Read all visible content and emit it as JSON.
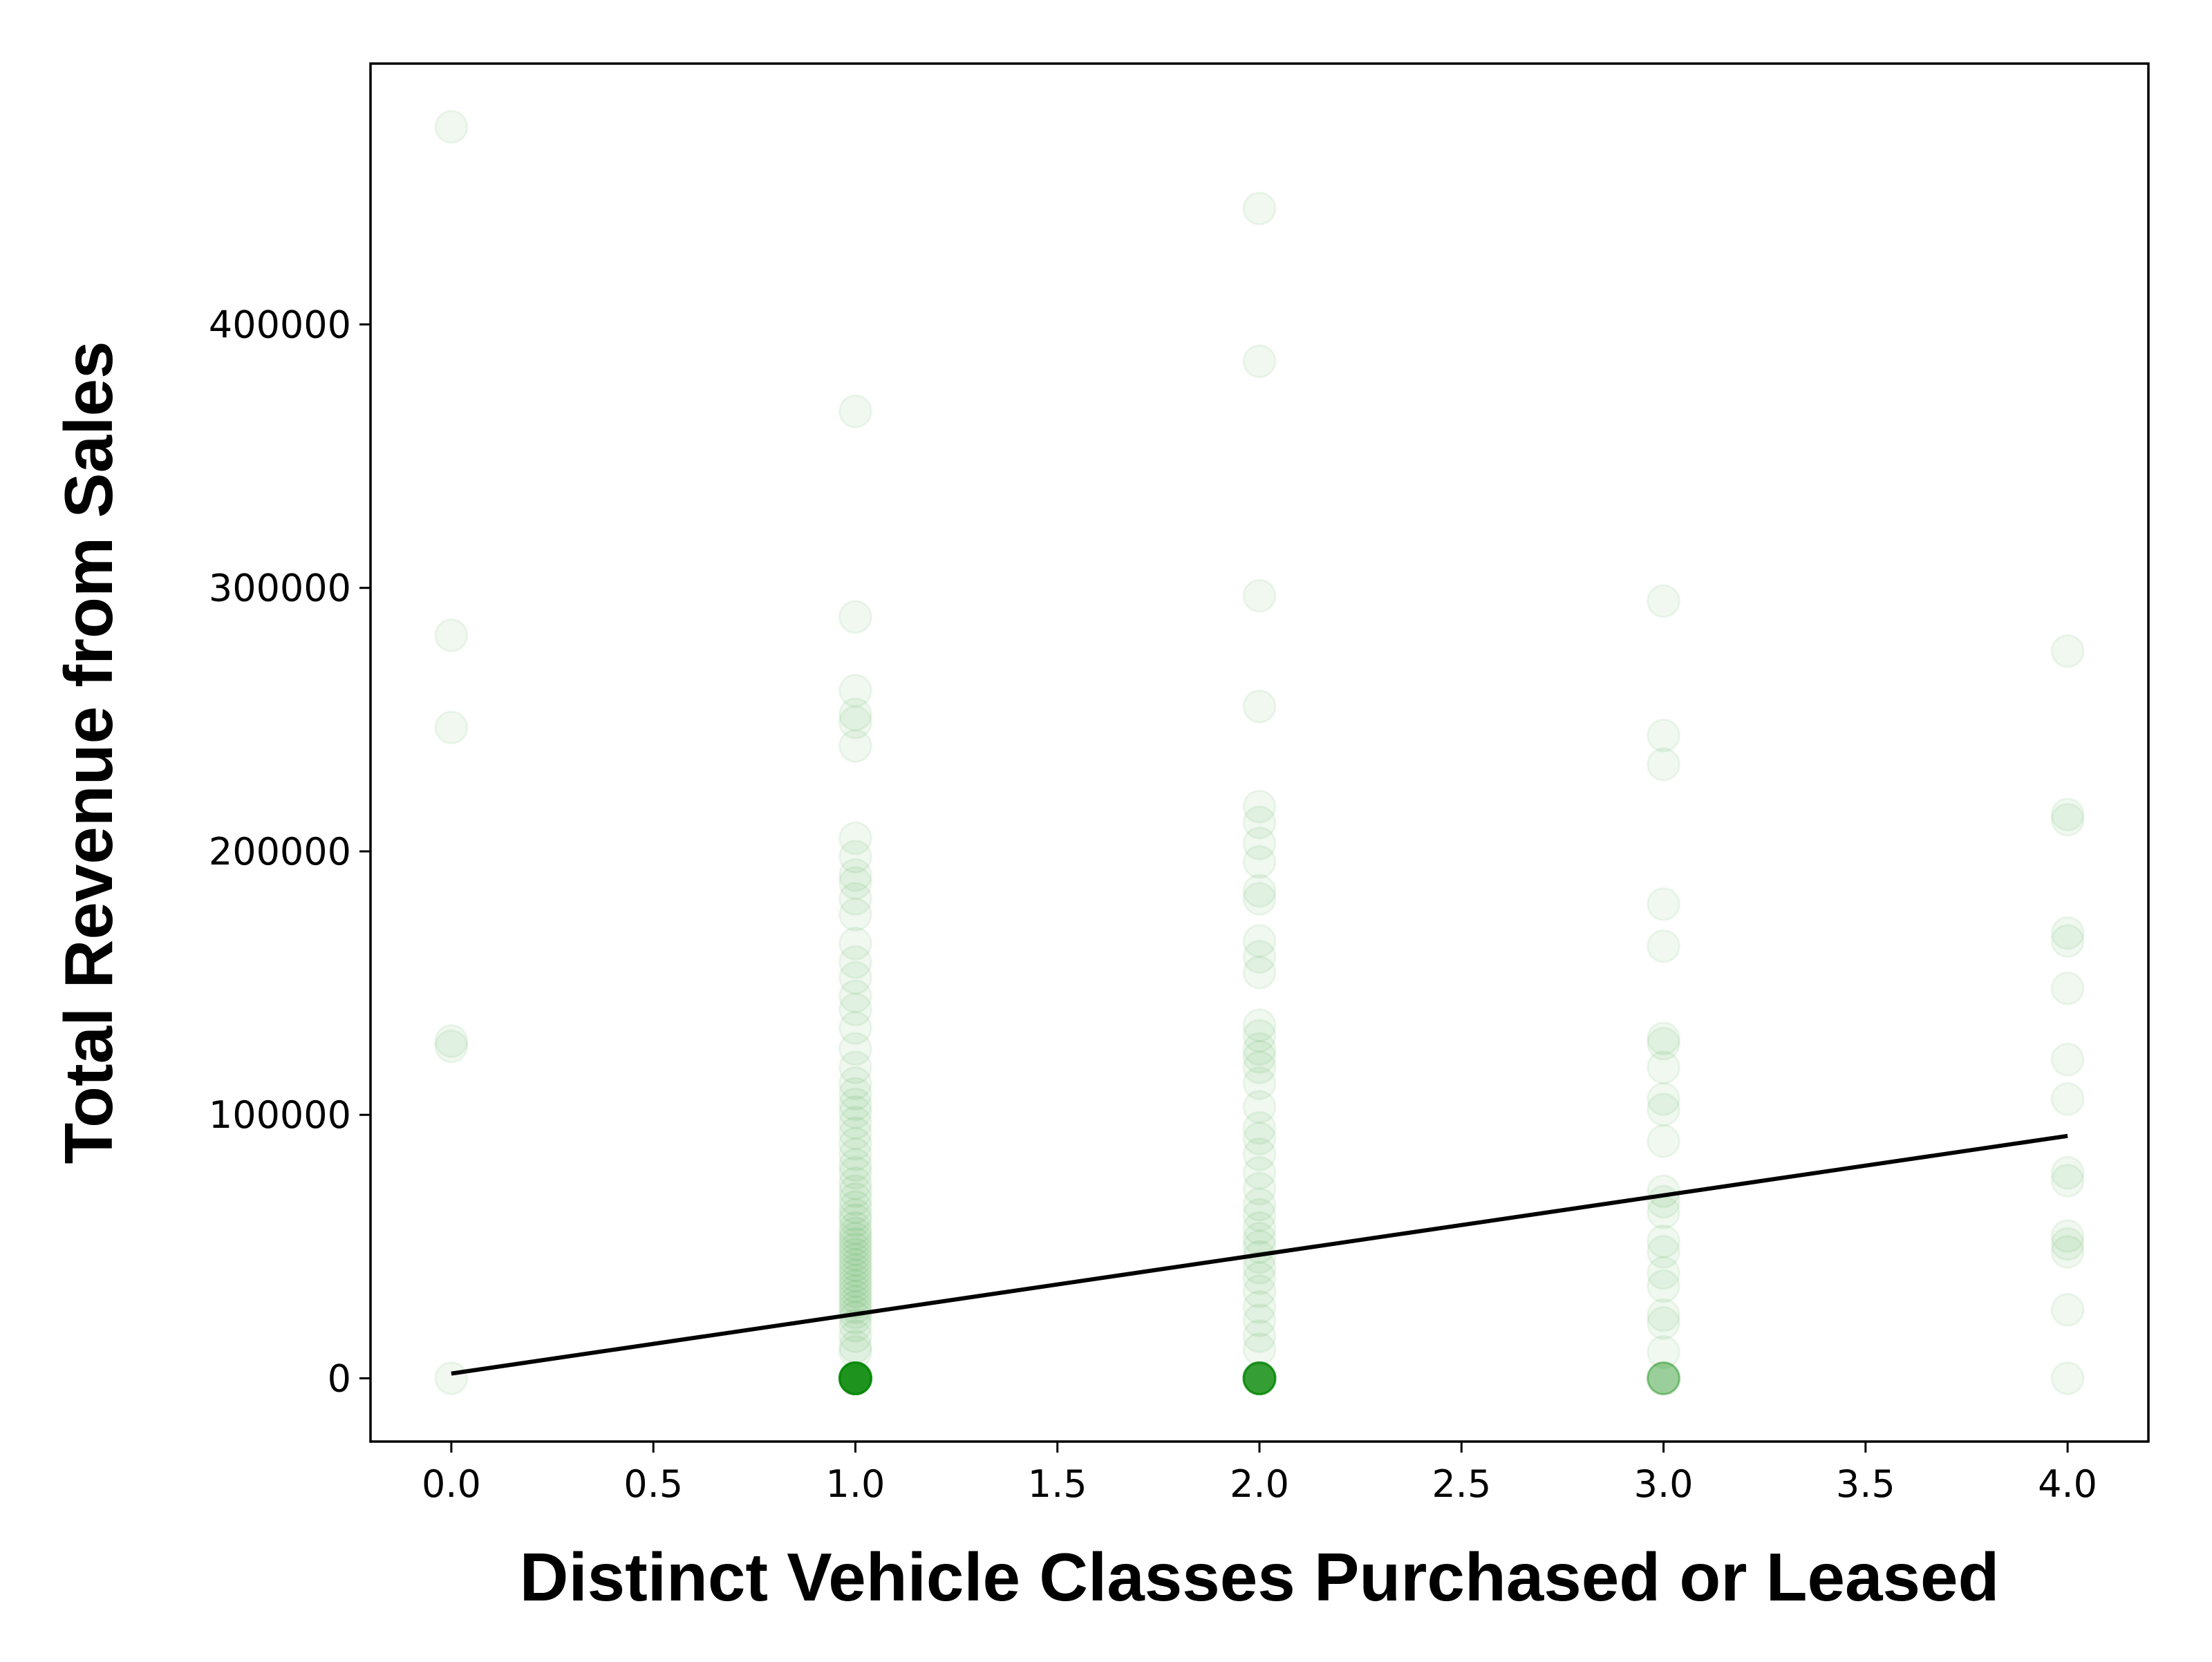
{
  "chart_data": {
    "type": "scatter",
    "title": "",
    "xlabel": "Distinct Vehicle Classes Purchased or Leased",
    "ylabel": "Total Revenue from Sales",
    "xlim": [
      -0.2,
      4.2
    ],
    "ylim": [
      -24000,
      499000
    ],
    "xticks": [
      0.0,
      0.5,
      1.0,
      1.5,
      2.0,
      2.5,
      3.0,
      3.5,
      4.0
    ],
    "xtick_labels": [
      "0.0",
      "0.5",
      "1.0",
      "1.5",
      "2.0",
      "2.5",
      "3.0",
      "3.5",
      "4.0"
    ],
    "yticks": [
      0,
      100000,
      200000,
      300000,
      400000
    ],
    "ytick_labels": [
      "0",
      "100000",
      "200000",
      "300000",
      "400000"
    ],
    "grid": false,
    "legend": "none",
    "colors": {
      "points": "#008000",
      "fit_line": "#000000",
      "axes": "#000000"
    },
    "point_alpha": 0.06,
    "series": [
      {
        "values": [
          {
            "x": 0,
            "y": 475000
          },
          {
            "x": 0,
            "y": 282000
          },
          {
            "x": 0,
            "y": 247000
          },
          {
            "x": 0,
            "y": 128000
          },
          {
            "x": 0,
            "y": 126000
          },
          {
            "x": 0,
            "y": 0
          },
          {
            "x": 1,
            "y": 367000
          },
          {
            "x": 1,
            "y": 289000
          },
          {
            "x": 1,
            "y": 261000
          },
          {
            "x": 1,
            "y": 252000
          },
          {
            "x": 1,
            "y": 249000
          },
          {
            "x": 1,
            "y": 240000
          },
          {
            "x": 1,
            "y": 205000
          },
          {
            "x": 1,
            "y": 198000
          },
          {
            "x": 1,
            "y": 191000
          },
          {
            "x": 1,
            "y": 188000
          },
          {
            "x": 1,
            "y": 182000
          },
          {
            "x": 1,
            "y": 176000
          },
          {
            "x": 1,
            "y": 165000
          },
          {
            "x": 1,
            "y": 158000
          },
          {
            "x": 1,
            "y": 152000
          },
          {
            "x": 1,
            "y": 145000
          },
          {
            "x": 1,
            "y": 140000
          },
          {
            "x": 1,
            "y": 133000
          },
          {
            "x": 1,
            "y": 125000
          },
          {
            "x": 1,
            "y": 118000
          },
          {
            "x": 1,
            "y": 112000
          },
          {
            "x": 1,
            "y": 108000
          },
          {
            "x": 1,
            "y": 104000
          },
          {
            "x": 1,
            "y": 101000
          },
          {
            "x": 1,
            "y": 97000
          },
          {
            "x": 1,
            "y": 93000
          },
          {
            "x": 1,
            "y": 89000
          },
          {
            "x": 1,
            "y": 85000
          },
          {
            "x": 1,
            "y": 81000
          },
          {
            "x": 1,
            "y": 78000
          },
          {
            "x": 1,
            "y": 74000
          },
          {
            "x": 1,
            "y": 71000
          },
          {
            "x": 1,
            "y": 68000
          },
          {
            "x": 1,
            "y": 65000
          },
          {
            "x": 1,
            "y": 62000
          },
          {
            "x": 1,
            "y": 60000
          },
          {
            "x": 1,
            "y": 57000
          },
          {
            "x": 1,
            "y": 55000
          },
          {
            "x": 1,
            "y": 53000
          },
          {
            "x": 1,
            "y": 51000
          },
          {
            "x": 1,
            "y": 49000
          },
          {
            "x": 1,
            "y": 47000
          },
          {
            "x": 1,
            "y": 45000
          },
          {
            "x": 1,
            "y": 43000
          },
          {
            "x": 1,
            "y": 41000
          },
          {
            "x": 1,
            "y": 39000
          },
          {
            "x": 1,
            "y": 37000
          },
          {
            "x": 1,
            "y": 35000
          },
          {
            "x": 1,
            "y": 33000
          },
          {
            "x": 1,
            "y": 31000
          },
          {
            "x": 1,
            "y": 29000
          },
          {
            "x": 1,
            "y": 27000
          },
          {
            "x": 1,
            "y": 25000
          },
          {
            "x": 1,
            "y": 23000
          },
          {
            "x": 1,
            "y": 20000
          },
          {
            "x": 1,
            "y": 16000
          },
          {
            "x": 1,
            "y": 12000
          },
          {
            "x": 1,
            "y": 10000
          },
          {
            "x": 1,
            "y": 0
          },
          {
            "x": 1,
            "y": 0
          },
          {
            "x": 1,
            "y": 0
          },
          {
            "x": 1,
            "y": 0
          },
          {
            "x": 1,
            "y": 0
          },
          {
            "x": 1,
            "y": 0
          },
          {
            "x": 1,
            "y": 0
          },
          {
            "x": 1,
            "y": 0
          },
          {
            "x": 1,
            "y": 0
          },
          {
            "x": 1,
            "y": 0
          },
          {
            "x": 1,
            "y": 0
          },
          {
            "x": 1,
            "y": 0
          },
          {
            "x": 1,
            "y": 0
          },
          {
            "x": 1,
            "y": 0
          },
          {
            "x": 1,
            "y": 0
          },
          {
            "x": 1,
            "y": 0
          },
          {
            "x": 1,
            "y": 0
          },
          {
            "x": 1,
            "y": 0
          },
          {
            "x": 1,
            "y": 0
          },
          {
            "x": 1,
            "y": 0
          },
          {
            "x": 1,
            "y": 0
          },
          {
            "x": 1,
            "y": 0
          },
          {
            "x": 1,
            "y": 0
          },
          {
            "x": 1,
            "y": 0
          },
          {
            "x": 1,
            "y": 0
          },
          {
            "x": 1,
            "y": 0
          },
          {
            "x": 1,
            "y": 0
          },
          {
            "x": 1,
            "y": 0
          },
          {
            "x": 1,
            "y": 0
          },
          {
            "x": 1,
            "y": 0
          },
          {
            "x": 1,
            "y": 0
          },
          {
            "x": 1,
            "y": 0
          },
          {
            "x": 2,
            "y": 444000
          },
          {
            "x": 2,
            "y": 386000
          },
          {
            "x": 2,
            "y": 297000
          },
          {
            "x": 2,
            "y": 255000
          },
          {
            "x": 2,
            "y": 217000
          },
          {
            "x": 2,
            "y": 211000
          },
          {
            "x": 2,
            "y": 203000
          },
          {
            "x": 2,
            "y": 196000
          },
          {
            "x": 2,
            "y": 185000
          },
          {
            "x": 2,
            "y": 182000
          },
          {
            "x": 2,
            "y": 166000
          },
          {
            "x": 2,
            "y": 160000
          },
          {
            "x": 2,
            "y": 154000
          },
          {
            "x": 2,
            "y": 134000
          },
          {
            "x": 2,
            "y": 130000
          },
          {
            "x": 2,
            "y": 125000
          },
          {
            "x": 2,
            "y": 122000
          },
          {
            "x": 2,
            "y": 118000
          },
          {
            "x": 2,
            "y": 112000
          },
          {
            "x": 2,
            "y": 103000
          },
          {
            "x": 2,
            "y": 95000
          },
          {
            "x": 2,
            "y": 91000
          },
          {
            "x": 2,
            "y": 85000
          },
          {
            "x": 2,
            "y": 78000
          },
          {
            "x": 2,
            "y": 72000
          },
          {
            "x": 2,
            "y": 66000
          },
          {
            "x": 2,
            "y": 62000
          },
          {
            "x": 2,
            "y": 57000
          },
          {
            "x": 2,
            "y": 53000
          },
          {
            "x": 2,
            "y": 50000
          },
          {
            "x": 2,
            "y": 46000
          },
          {
            "x": 2,
            "y": 42000
          },
          {
            "x": 2,
            "y": 38000
          },
          {
            "x": 2,
            "y": 33000
          },
          {
            "x": 2,
            "y": 27000
          },
          {
            "x": 2,
            "y": 22000
          },
          {
            "x": 2,
            "y": 16000
          },
          {
            "x": 2,
            "y": 11000
          },
          {
            "x": 2,
            "y": 0
          },
          {
            "x": 2,
            "y": 0
          },
          {
            "x": 2,
            "y": 0
          },
          {
            "x": 2,
            "y": 0
          },
          {
            "x": 2,
            "y": 0
          },
          {
            "x": 2,
            "y": 0
          },
          {
            "x": 2,
            "y": 0
          },
          {
            "x": 2,
            "y": 0
          },
          {
            "x": 2,
            "y": 0
          },
          {
            "x": 2,
            "y": 0
          },
          {
            "x": 2,
            "y": 0
          },
          {
            "x": 2,
            "y": 0
          },
          {
            "x": 2,
            "y": 0
          },
          {
            "x": 2,
            "y": 0
          },
          {
            "x": 2,
            "y": 0
          },
          {
            "x": 2,
            "y": 0
          },
          {
            "x": 2,
            "y": 0
          },
          {
            "x": 2,
            "y": 0
          },
          {
            "x": 2,
            "y": 0
          },
          {
            "x": 2,
            "y": 0
          },
          {
            "x": 2,
            "y": 0
          },
          {
            "x": 2,
            "y": 0
          },
          {
            "x": 2,
            "y": 0
          },
          {
            "x": 2,
            "y": 0
          },
          {
            "x": 3,
            "y": 295000
          },
          {
            "x": 3,
            "y": 244000
          },
          {
            "x": 3,
            "y": 233000
          },
          {
            "x": 3,
            "y": 180000
          },
          {
            "x": 3,
            "y": 164000
          },
          {
            "x": 3,
            "y": 129000
          },
          {
            "x": 3,
            "y": 127000
          },
          {
            "x": 3,
            "y": 118000
          },
          {
            "x": 3,
            "y": 106000
          },
          {
            "x": 3,
            "y": 102000
          },
          {
            "x": 3,
            "y": 90000
          },
          {
            "x": 3,
            "y": 71000
          },
          {
            "x": 3,
            "y": 67000
          },
          {
            "x": 3,
            "y": 63000
          },
          {
            "x": 3,
            "y": 52000
          },
          {
            "x": 3,
            "y": 48000
          },
          {
            "x": 3,
            "y": 40000
          },
          {
            "x": 3,
            "y": 35000
          },
          {
            "x": 3,
            "y": 24000
          },
          {
            "x": 3,
            "y": 21000
          },
          {
            "x": 3,
            "y": 10000
          },
          {
            "x": 3,
            "y": 0
          },
          {
            "x": 3,
            "y": 0
          },
          {
            "x": 3,
            "y": 0
          },
          {
            "x": 3,
            "y": 0
          },
          {
            "x": 3,
            "y": 0
          },
          {
            "x": 3,
            "y": 0
          },
          {
            "x": 3,
            "y": 0
          },
          {
            "x": 3,
            "y": 0
          },
          {
            "x": 4,
            "y": 276000
          },
          {
            "x": 4,
            "y": 214000
          },
          {
            "x": 4,
            "y": 212000
          },
          {
            "x": 4,
            "y": 169000
          },
          {
            "x": 4,
            "y": 166000
          },
          {
            "x": 4,
            "y": 148000
          },
          {
            "x": 4,
            "y": 121000
          },
          {
            "x": 4,
            "y": 106000
          },
          {
            "x": 4,
            "y": 78000
          },
          {
            "x": 4,
            "y": 75000
          },
          {
            "x": 4,
            "y": 54000
          },
          {
            "x": 4,
            "y": 51000
          },
          {
            "x": 4,
            "y": 48000
          },
          {
            "x": 4,
            "y": 26000
          },
          {
            "x": 4,
            "y": 0
          }
        ]
      }
    ],
    "fit_line": {
      "x": [
        0.0,
        4.0
      ],
      "y": [
        1800,
        92000
      ]
    }
  }
}
